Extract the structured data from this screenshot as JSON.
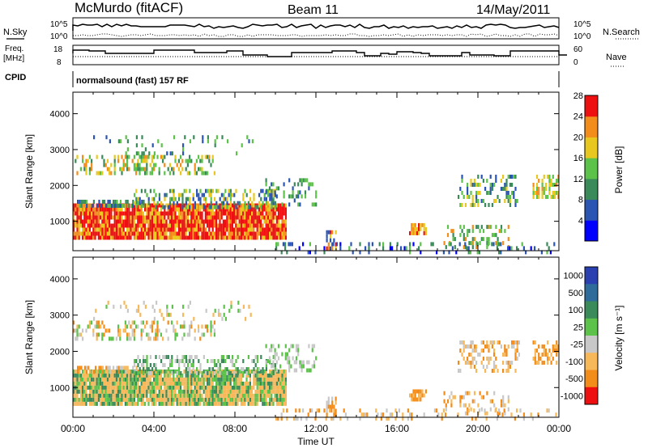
{
  "header": {
    "station": "McMurdo (fitACF)",
    "beam": "Beam 11",
    "date": "14/May/2011"
  },
  "side_labels": {
    "nsky": "N.Sky",
    "nsearch": "N.Search",
    "freq_line1": "Freq.",
    "freq_line2": "[MHz]",
    "nave": "Nave",
    "cpid": "CPID"
  },
  "cpid_text": "normalsound (fast) 157 RF",
  "small_axes": {
    "noise_left_top": "10^5",
    "noise_left_bottom": "10^0",
    "noise_right_top": "10^5",
    "noise_right_bottom": "10^0",
    "freq_left_top": "18",
    "freq_left_bottom": "8",
    "nave_right_top": "60",
    "nave_right_bottom": "0"
  },
  "chart_data": [
    {
      "type": "heatmap",
      "title": "",
      "xlabel": "Time UT",
      "ylabel": "Slant Range [km]",
      "x_ticks": [
        "00:00",
        "04:00",
        "08:00",
        "12:00",
        "16:00",
        "20:00",
        "00:00"
      ],
      "x_range_hours": [
        0,
        24
      ],
      "y_ticks": [
        1000,
        2000,
        3000,
        4000
      ],
      "ylim": [
        180,
        4600
      ],
      "colorbar_label": "Power [dB]",
      "colorbar_ticks": [
        "4",
        "8",
        "12",
        "16",
        "20",
        "24",
        "28"
      ],
      "colorbar_colors": [
        "#0000ff",
        "#2b55b3",
        "#3a8a5a",
        "#5cc24a",
        "#e8c81e",
        "#f28c1a",
        "#ee1010"
      ],
      "grid": false
    },
    {
      "type": "heatmap",
      "title": "",
      "xlabel": "Time UT",
      "ylabel": "Slant Range [km]",
      "x_ticks": [
        "00:00",
        "04:00",
        "08:00",
        "12:00",
        "16:00",
        "20:00",
        "00:00"
      ],
      "x_range_hours": [
        0,
        24
      ],
      "y_ticks": [
        1000,
        2000,
        3000,
        4000
      ],
      "ylim": [
        180,
        4600
      ],
      "colorbar_label": "Velocity [m s⁻¹]",
      "colorbar_ticks": [
        "1000",
        "500",
        "100",
        "25",
        "-25",
        "-100",
        "-500",
        "-1000"
      ],
      "colorbar_colors": [
        "#2a3fb0",
        "#2e6b9a",
        "#3a8a5a",
        "#5cc24a",
        "#c8c8c8",
        "#f7b85a",
        "#f28c1a",
        "#ee1010"
      ],
      "grid": false
    }
  ]
}
